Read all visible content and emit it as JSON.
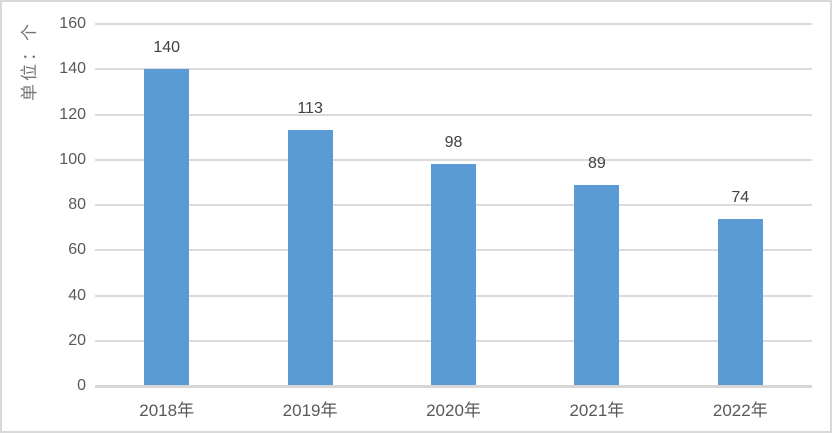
{
  "chart_data": {
    "type": "bar",
    "title": "",
    "categories": [
      "2018年",
      "2019年",
      "2020年",
      "2021年",
      "2022年"
    ],
    "values": [
      140,
      113,
      98,
      89,
      74
    ],
    "xlabel": "",
    "ylabel": "单位：个",
    "ylim": [
      0,
      160
    ],
    "ytick_step": 20,
    "ytick_labels": [
      "0",
      "20",
      "40",
      "60",
      "80",
      "100",
      "120",
      "140",
      "160"
    ],
    "grid": true,
    "legend": "none",
    "colors": {
      "bar": "#5b9bd5",
      "gridline": "#dbdbdb",
      "axis_line": "#d6d6d6",
      "tick_label": "#595959",
      "data_label": "#404040",
      "axis_title": "#757575",
      "frame_border": "#d9d9d9",
      "background": "#ffffff"
    }
  }
}
